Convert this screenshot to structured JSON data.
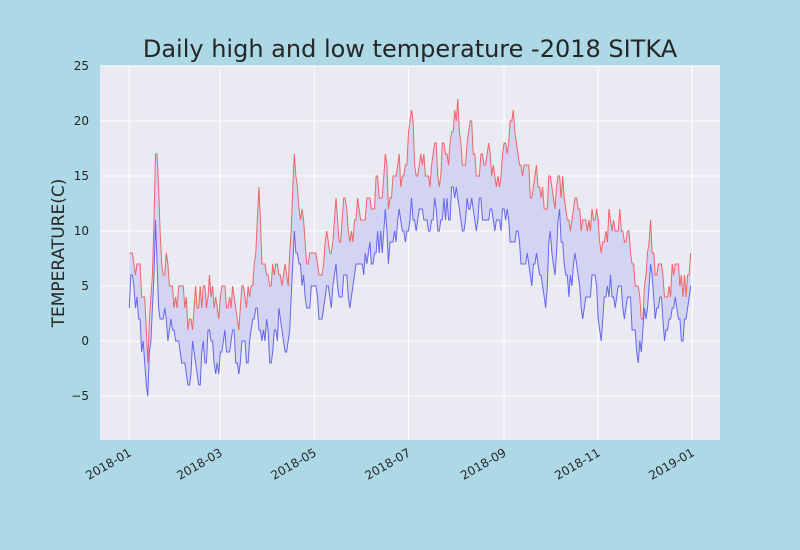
{
  "chart_data": {
    "type": "line",
    "title": "Daily high and low temperature -2018 SITKA",
    "xlabel": "",
    "ylabel": "TEMPERATURE(C)",
    "x_range": [
      "2017-12-13",
      "2019-01-19"
    ],
    "ylim": [
      -9,
      25
    ],
    "yticks": [
      -5,
      0,
      5,
      10,
      15,
      20,
      25
    ],
    "ytick_labels": [
      "−5",
      "0",
      "5",
      "10",
      "15",
      "20",
      "25"
    ],
    "xticks": [
      "2018-01-01",
      "2018-03-01",
      "2018-05-01",
      "2018-07-01",
      "2018-09-01",
      "2018-11-01",
      "2019-01-01"
    ],
    "xtick_labels": [
      "2018-01",
      "2018-03",
      "2018-05",
      "2018-07",
      "2018-09",
      "2018-11",
      "2019-01"
    ],
    "grid": true,
    "fill_between": true,
    "colors": {
      "high": "#ee6666",
      "low": "#6666ee",
      "fill": "#d3d3f3",
      "plot_bg": "#eaeaf2",
      "grid": "#ffffff"
    },
    "series": [
      {
        "key": "high",
        "points": [
          [
            "2018-01-01",
            8
          ],
          [
            "2018-01-03",
            8
          ],
          [
            "2018-01-05",
            6
          ],
          [
            "2018-01-07",
            7
          ],
          [
            "2018-01-09",
            4
          ],
          [
            "2018-01-11",
            4
          ],
          [
            "2018-01-13",
            -2
          ],
          [
            "2018-01-16",
            6
          ],
          [
            "2018-01-18",
            17
          ],
          [
            "2018-01-20",
            14
          ],
          [
            "2018-01-22",
            7
          ],
          [
            "2018-01-24",
            6
          ],
          [
            "2018-01-26",
            7
          ],
          [
            "2018-01-28",
            5
          ],
          [
            "2018-01-31",
            4
          ],
          [
            "2018-02-03",
            5
          ],
          [
            "2018-02-06",
            3
          ],
          [
            "2018-02-09",
            2
          ],
          [
            "2018-02-11",
            1
          ],
          [
            "2018-02-13",
            5
          ],
          [
            "2018-02-15",
            3
          ],
          [
            "2018-02-18",
            5
          ],
          [
            "2018-02-20",
            3
          ],
          [
            "2018-02-22",
            6
          ],
          [
            "2018-02-25",
            3
          ],
          [
            "2018-02-28",
            2
          ],
          [
            "2018-03-03",
            5
          ],
          [
            "2018-03-06",
            3
          ],
          [
            "2018-03-09",
            5
          ],
          [
            "2018-03-11",
            3
          ],
          [
            "2018-03-13",
            1
          ],
          [
            "2018-03-15",
            5
          ],
          [
            "2018-03-18",
            3
          ],
          [
            "2018-03-21",
            5
          ],
          [
            "2018-03-24",
            8
          ],
          [
            "2018-03-26",
            14
          ],
          [
            "2018-03-28",
            7
          ],
          [
            "2018-03-31",
            6
          ],
          [
            "2018-04-03",
            5
          ],
          [
            "2018-04-06",
            7
          ],
          [
            "2018-04-09",
            6
          ],
          [
            "2018-04-12",
            7
          ],
          [
            "2018-04-14",
            5
          ],
          [
            "2018-04-16",
            10
          ],
          [
            "2018-04-18",
            17
          ],
          [
            "2018-04-21",
            12
          ],
          [
            "2018-04-24",
            11
          ],
          [
            "2018-04-27",
            7
          ],
          [
            "2018-04-30",
            8
          ],
          [
            "2018-05-03",
            7
          ],
          [
            "2018-05-06",
            6
          ],
          [
            "2018-05-09",
            10
          ],
          [
            "2018-05-12",
            8
          ],
          [
            "2018-05-15",
            13
          ],
          [
            "2018-05-18",
            9
          ],
          [
            "2018-05-21",
            13
          ],
          [
            "2018-05-24",
            9
          ],
          [
            "2018-05-27",
            11
          ],
          [
            "2018-05-30",
            12
          ],
          [
            "2018-06-02",
            11
          ],
          [
            "2018-06-05",
            13
          ],
          [
            "2018-06-08",
            12
          ],
          [
            "2018-06-11",
            15
          ],
          [
            "2018-06-14",
            13
          ],
          [
            "2018-06-16",
            17
          ],
          [
            "2018-06-18",
            12
          ],
          [
            "2018-06-21",
            15
          ],
          [
            "2018-06-24",
            16
          ],
          [
            "2018-06-27",
            15
          ],
          [
            "2018-06-30",
            16
          ],
          [
            "2018-07-03",
            21
          ],
          [
            "2018-07-06",
            15
          ],
          [
            "2018-07-09",
            17
          ],
          [
            "2018-07-12",
            15
          ],
          [
            "2018-07-15",
            14
          ],
          [
            "2018-07-18",
            18
          ],
          [
            "2018-07-21",
            14
          ],
          [
            "2018-07-24",
            18
          ],
          [
            "2018-07-27",
            16
          ],
          [
            "2018-07-30",
            19
          ],
          [
            "2018-08-02",
            22
          ],
          [
            "2018-08-05",
            16
          ],
          [
            "2018-08-08",
            18
          ],
          [
            "2018-08-11",
            20
          ],
          [
            "2018-08-14",
            15
          ],
          [
            "2018-08-17",
            17
          ],
          [
            "2018-08-20",
            16
          ],
          [
            "2018-08-23",
            17
          ],
          [
            "2018-08-26",
            15
          ],
          [
            "2018-08-29",
            14
          ],
          [
            "2018-09-01",
            18
          ],
          [
            "2018-09-04",
            18
          ],
          [
            "2018-09-07",
            21
          ],
          [
            "2018-09-10",
            17
          ],
          [
            "2018-09-13",
            15
          ],
          [
            "2018-09-16",
            16
          ],
          [
            "2018-09-19",
            13
          ],
          [
            "2018-09-22",
            16
          ],
          [
            "2018-09-25",
            13
          ],
          [
            "2018-09-28",
            12
          ],
          [
            "2018-10-01",
            15
          ],
          [
            "2018-10-04",
            12
          ],
          [
            "2018-10-07",
            15
          ],
          [
            "2018-10-10",
            13
          ],
          [
            "2018-10-13",
            11
          ],
          [
            "2018-10-16",
            12
          ],
          [
            "2018-10-19",
            12
          ],
          [
            "2018-10-22",
            11
          ],
          [
            "2018-10-25",
            10
          ],
          [
            "2018-10-28",
            12
          ],
          [
            "2018-10-31",
            12
          ],
          [
            "2018-11-03",
            8
          ],
          [
            "2018-11-06",
            10
          ],
          [
            "2018-11-09",
            11
          ],
          [
            "2018-11-12",
            10
          ],
          [
            "2018-11-15",
            12
          ],
          [
            "2018-11-18",
            9
          ],
          [
            "2018-11-21",
            10
          ],
          [
            "2018-11-24",
            7
          ],
          [
            "2018-11-27",
            5
          ],
          [
            "2018-11-30",
            2
          ],
          [
            "2018-12-03",
            8
          ],
          [
            "2018-12-05",
            11
          ],
          [
            "2018-12-08",
            6
          ],
          [
            "2018-12-11",
            7
          ],
          [
            "2018-12-14",
            4
          ],
          [
            "2018-12-17",
            5
          ],
          [
            "2018-12-20",
            6
          ],
          [
            "2018-12-23",
            7
          ],
          [
            "2018-12-26",
            4
          ],
          [
            "2018-12-29",
            6
          ],
          [
            "2018-12-31",
            8
          ]
        ]
      },
      {
        "key": "low",
        "points": [
          [
            "2018-01-01",
            3
          ],
          [
            "2018-01-03",
            6
          ],
          [
            "2018-01-05",
            3
          ],
          [
            "2018-01-07",
            2
          ],
          [
            "2018-01-09",
            -1
          ],
          [
            "2018-01-11",
            -2
          ],
          [
            "2018-01-13",
            -5
          ],
          [
            "2018-01-16",
            3
          ],
          [
            "2018-01-18",
            11
          ],
          [
            "2018-01-20",
            3
          ],
          [
            "2018-01-22",
            2
          ],
          [
            "2018-01-24",
            3
          ],
          [
            "2018-01-26",
            0
          ],
          [
            "2018-01-28",
            2
          ],
          [
            "2018-01-31",
            0
          ],
          [
            "2018-02-03",
            -1
          ],
          [
            "2018-02-06",
            -2
          ],
          [
            "2018-02-09",
            -4
          ],
          [
            "2018-02-11",
            0
          ],
          [
            "2018-02-13",
            -2
          ],
          [
            "2018-02-15",
            -4
          ],
          [
            "2018-02-18",
            0
          ],
          [
            "2018-02-20",
            -2
          ],
          [
            "2018-02-22",
            1
          ],
          [
            "2018-02-25",
            -2
          ],
          [
            "2018-02-28",
            -3
          ],
          [
            "2018-03-03",
            0
          ],
          [
            "2018-03-06",
            -1
          ],
          [
            "2018-03-09",
            1
          ],
          [
            "2018-03-11",
            -2
          ],
          [
            "2018-03-13",
            -3
          ],
          [
            "2018-03-15",
            0
          ],
          [
            "2018-03-18",
            -2
          ],
          [
            "2018-03-21",
            1
          ],
          [
            "2018-03-24",
            3
          ],
          [
            "2018-03-26",
            1
          ],
          [
            "2018-03-28",
            0
          ],
          [
            "2018-03-31",
            2
          ],
          [
            "2018-04-03",
            -2
          ],
          [
            "2018-04-06",
            1
          ],
          [
            "2018-04-09",
            2
          ],
          [
            "2018-04-12",
            -1
          ],
          [
            "2018-04-14",
            0
          ],
          [
            "2018-04-16",
            4
          ],
          [
            "2018-04-18",
            10
          ],
          [
            "2018-04-21",
            7
          ],
          [
            "2018-04-24",
            6
          ],
          [
            "2018-04-27",
            3
          ],
          [
            "2018-04-30",
            5
          ],
          [
            "2018-05-03",
            4
          ],
          [
            "2018-05-06",
            2
          ],
          [
            "2018-05-09",
            5
          ],
          [
            "2018-05-12",
            3
          ],
          [
            "2018-05-15",
            7
          ],
          [
            "2018-05-18",
            4
          ],
          [
            "2018-05-21",
            6
          ],
          [
            "2018-05-24",
            3
          ],
          [
            "2018-05-27",
            6
          ],
          [
            "2018-05-30",
            7
          ],
          [
            "2018-06-02",
            6
          ],
          [
            "2018-06-05",
            8
          ],
          [
            "2018-06-08",
            7
          ],
          [
            "2018-06-11",
            10
          ],
          [
            "2018-06-14",
            8
          ],
          [
            "2018-06-16",
            12
          ],
          [
            "2018-06-18",
            7
          ],
          [
            "2018-06-21",
            9
          ],
          [
            "2018-06-24",
            11
          ],
          [
            "2018-06-27",
            10
          ],
          [
            "2018-06-30",
            10
          ],
          [
            "2018-07-03",
            13
          ],
          [
            "2018-07-06",
            10
          ],
          [
            "2018-07-09",
            12
          ],
          [
            "2018-07-12",
            11
          ],
          [
            "2018-07-15",
            10
          ],
          [
            "2018-07-18",
            13
          ],
          [
            "2018-07-21",
            10
          ],
          [
            "2018-07-24",
            13
          ],
          [
            "2018-07-27",
            11
          ],
          [
            "2018-07-30",
            14
          ],
          [
            "2018-08-02",
            13
          ],
          [
            "2018-08-05",
            10
          ],
          [
            "2018-08-08",
            13
          ],
          [
            "2018-08-11",
            13
          ],
          [
            "2018-08-14",
            10
          ],
          [
            "2018-08-17",
            13
          ],
          [
            "2018-08-20",
            11
          ],
          [
            "2018-08-23",
            12
          ],
          [
            "2018-08-26",
            10
          ],
          [
            "2018-08-29",
            11
          ],
          [
            "2018-09-01",
            12
          ],
          [
            "2018-09-04",
            11
          ],
          [
            "2018-09-07",
            9
          ],
          [
            "2018-09-10",
            10
          ],
          [
            "2018-09-13",
            7
          ],
          [
            "2018-09-16",
            8
          ],
          [
            "2018-09-19",
            5
          ],
          [
            "2018-09-22",
            8
          ],
          [
            "2018-09-25",
            6
          ],
          [
            "2018-09-28",
            3
          ],
          [
            "2018-10-01",
            10
          ],
          [
            "2018-10-04",
            6
          ],
          [
            "2018-10-07",
            12
          ],
          [
            "2018-10-10",
            7
          ],
          [
            "2018-10-13",
            4
          ],
          [
            "2018-10-16",
            7
          ],
          [
            "2018-10-19",
            6
          ],
          [
            "2018-10-22",
            2
          ],
          [
            "2018-10-25",
            4
          ],
          [
            "2018-10-28",
            6
          ],
          [
            "2018-10-31",
            5
          ],
          [
            "2018-11-03",
            0
          ],
          [
            "2018-11-06",
            4
          ],
          [
            "2018-11-09",
            6
          ],
          [
            "2018-11-12",
            3
          ],
          [
            "2018-11-15",
            5
          ],
          [
            "2018-11-18",
            2
          ],
          [
            "2018-11-21",
            4
          ],
          [
            "2018-11-24",
            1
          ],
          [
            "2018-11-27",
            -2
          ],
          [
            "2018-11-30",
            1
          ],
          [
            "2018-12-03",
            3
          ],
          [
            "2018-12-05",
            7
          ],
          [
            "2018-12-08",
            2
          ],
          [
            "2018-12-11",
            4
          ],
          [
            "2018-12-14",
            0
          ],
          [
            "2018-12-17",
            2
          ],
          [
            "2018-12-20",
            3
          ],
          [
            "2018-12-23",
            2
          ],
          [
            "2018-12-26",
            0
          ],
          [
            "2018-12-29",
            3
          ],
          [
            "2018-12-31",
            5
          ]
        ]
      }
    ]
  }
}
